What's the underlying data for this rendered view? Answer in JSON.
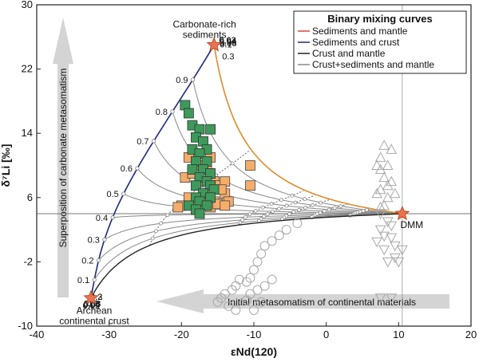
{
  "chart_data": {
    "type": "scatter",
    "xlabel": "εNd(120)",
    "ylabel": "δ⁷Li [‰]",
    "xlim": [
      -40,
      20
    ],
    "ylim": [
      -10,
      30
    ],
    "x_ticks": [
      -40,
      -30,
      -20,
      -10,
      0,
      10,
      20
    ],
    "y_ticks": [
      -10,
      -2,
      6,
      14,
      22,
      30
    ],
    "legend": {
      "title": "Binary mixing curves",
      "placement": "top-right",
      "entries": [
        {
          "label": "Sediments and mantle",
          "color": "#e0453a"
        },
        {
          "label": "Sediments and crust",
          "color": "#1c2a80"
        },
        {
          "label": "Crust and mantle",
          "color": "#222222"
        },
        {
          "label": "Crust+sediments and mantle",
          "color": "#888888"
        }
      ]
    },
    "end_members": [
      {
        "name": "sediments",
        "label_lines": [
          "Carbonate-rich",
          "sediments"
        ],
        "x": -15.5,
        "y": 25,
        "color": "#e8734d"
      },
      {
        "name": "dmm",
        "label_lines": [
          "DMM"
        ],
        "x": 10.5,
        "y": 4,
        "color": "#e8734d"
      },
      {
        "name": "crust",
        "label_lines": [
          "Archean",
          "continental crust"
        ],
        "x": -32.5,
        "y": -6.5,
        "color": "#e8734d"
      }
    ],
    "colors": {
      "sed_mantle_curve": "#e08a2c",
      "sed_crust_curve": "#1c2a80",
      "crust_mantle_line": "#222222",
      "mixing_lines": "#888888",
      "fraction_curves": "#666666",
      "square_green": "#3d9a5b",
      "square_orange": "#f6ad6a",
      "open_markers": "#a8a8a8"
    },
    "fractions": [
      0.9,
      0.8,
      0.7,
      0.6,
      0.5,
      0.4,
      0.3,
      0.2,
      0.1
    ],
    "fraction_labels": {
      "sed_crust": [
        "0.9",
        "0.8",
        "0.7",
        "0.6",
        "0.5",
        "0.4",
        "0.3",
        "0.2",
        "0.1"
      ],
      "sed_mantle": [
        "0.3",
        "0.1",
        "0.08",
        "0.06",
        "0.04",
        "0.02"
      ],
      "crust_mantle": [
        "0.3",
        "0.2",
        "0.1",
        "0.08",
        "0.06",
        "0.04",
        "0.02"
      ]
    },
    "mantle_fractions": [
      0.3,
      0.1,
      0.08,
      0.06,
      0.04,
      0.02
    ],
    "green_squares": [
      [
        -19.5,
        17.5
      ],
      [
        -19,
        16.5
      ],
      [
        -18.5,
        15
      ],
      [
        -17.5,
        14.5
      ],
      [
        -16,
        14.5
      ],
      [
        -18,
        13.5
      ],
      [
        -17,
        13
      ],
      [
        -16.5,
        12
      ],
      [
        -18.5,
        12
      ],
      [
        -17.5,
        11.5
      ],
      [
        -18,
        10.5
      ],
      [
        -16.5,
        10.5
      ],
      [
        -17,
        9.5
      ],
      [
        -18.5,
        9.5
      ],
      [
        -16,
        9
      ],
      [
        -17.5,
        8.5
      ],
      [
        -16.5,
        8
      ],
      [
        -18,
        7.5
      ],
      [
        -16,
        7.5
      ],
      [
        -15.5,
        7
      ],
      [
        -17,
        6.5
      ],
      [
        -16,
        6
      ],
      [
        -18,
        6
      ],
      [
        -17.5,
        5.5
      ],
      [
        -16.5,
        5
      ],
      [
        -19,
        5
      ],
      [
        -18,
        4.5
      ],
      [
        -17.5,
        4
      ]
    ],
    "orange_squares": [
      [
        -16,
        11
      ],
      [
        -19,
        11
      ],
      [
        -19.5,
        8.5
      ],
      [
        -17.5,
        10
      ],
      [
        -16.5,
        9.5
      ],
      [
        -15.5,
        8
      ],
      [
        -16,
        9
      ],
      [
        -18.5,
        9
      ],
      [
        -17.5,
        8
      ],
      [
        -15,
        7.5
      ],
      [
        -14,
        8
      ],
      [
        -10.5,
        10
      ],
      [
        -10.5,
        7.5
      ],
      [
        -14,
        6.5
      ],
      [
        -14.5,
        7
      ],
      [
        -13.5,
        5.5
      ],
      [
        -15.5,
        5.5
      ],
      [
        -16.5,
        6.5
      ],
      [
        -19,
        6
      ],
      [
        -17,
        5.5
      ],
      [
        -18,
        5
      ],
      [
        -20,
        5
      ],
      [
        -20.5,
        4.8
      ],
      [
        -17.5,
        4.5
      ],
      [
        -16,
        4.8
      ],
      [
        -15,
        5.2
      ],
      [
        -14,
        5
      ]
    ],
    "open_circles": [
      [
        -4,
        2.8
      ],
      [
        -5.5,
        2
      ],
      [
        -6.5,
        1.3
      ],
      [
        -7.5,
        0.6
      ],
      [
        -8.5,
        0
      ],
      [
        -9,
        -1
      ],
      [
        -9.5,
        -2
      ],
      [
        -10,
        -3
      ],
      [
        -10.5,
        -4
      ],
      [
        -11,
        -4.5
      ],
      [
        -12,
        -4.2
      ],
      [
        -12.5,
        -5
      ],
      [
        -13,
        -5.5
      ],
      [
        -14,
        -6
      ],
      [
        -14.5,
        -6.5
      ],
      [
        -15,
        -7
      ],
      [
        -13.5,
        -7.5
      ],
      [
        -12.5,
        -8
      ],
      [
        -11,
        -6.8
      ],
      [
        -10.5,
        -6
      ],
      [
        -9.5,
        -5.5
      ],
      [
        -8.5,
        -5
      ],
      [
        -7.5,
        -4.2
      ],
      [
        -9,
        -7
      ],
      [
        -10,
        -8
      ]
    ],
    "open_triangles_up": [
      [
        7.5,
        11
      ],
      [
        8,
        12.5
      ],
      [
        8.5,
        10
      ],
      [
        9,
        12
      ],
      [
        7.5,
        9.5
      ],
      [
        8,
        8.5
      ],
      [
        8.5,
        7.5
      ],
      [
        7.5,
        7
      ],
      [
        8.5,
        6
      ],
      [
        7,
        6.5
      ],
      [
        8,
        5
      ],
      [
        7.5,
        4.8
      ],
      [
        9,
        8
      ],
      [
        9.5,
        6.5
      ],
      [
        7,
        10
      ]
    ],
    "open_triangles_down": [
      [
        7.5,
        4
      ],
      [
        8.5,
        3
      ],
      [
        9,
        2.5
      ],
      [
        7.5,
        2
      ],
      [
        8,
        1.2
      ],
      [
        9,
        1
      ],
      [
        9.5,
        0
      ],
      [
        8,
        -0.5
      ],
      [
        7,
        0.5
      ],
      [
        9.5,
        -1.5
      ],
      [
        8.5,
        -2
      ],
      [
        7.5,
        -6.5
      ],
      [
        10,
        -2
      ],
      [
        9,
        -6.5
      ],
      [
        10.5,
        -0.5
      ]
    ],
    "arrows": [
      {
        "label": "Superposition of carbonate metasomatism",
        "direction": "up"
      },
      {
        "label": "Initial metasomatism of continental materials",
        "direction": "left"
      }
    ]
  }
}
